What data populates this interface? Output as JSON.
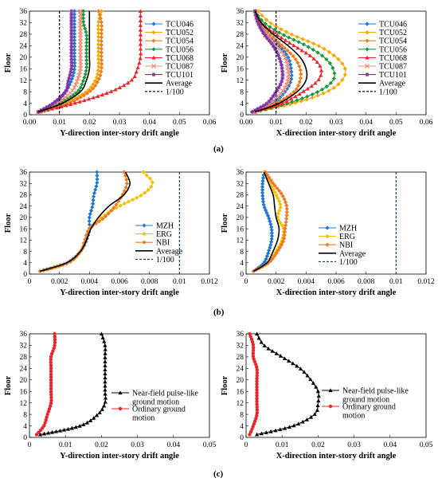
{
  "figure": {
    "panel_labels": [
      "(a)",
      "(b)",
      "(c)"
    ]
  },
  "chart_data": [
    {
      "id": "a-left",
      "type": "line",
      "panel": "(a)",
      "xlabel": "Y-direction inter-story drift angle",
      "ylabel": "Floor",
      "xlim": [
        0,
        0.06
      ],
      "ylim": [
        0,
        36
      ],
      "xticks": [
        "0.00",
        "0.01",
        "0.02",
        "0.03",
        "0.04",
        "0.05",
        "0.06"
      ],
      "yticks": [
        "0",
        "4",
        "8",
        "12",
        "16",
        "20",
        "24",
        "28",
        "32",
        "36"
      ],
      "legend_position": "right",
      "floors": [
        1,
        4,
        8,
        12,
        16,
        20,
        24,
        28,
        32,
        36
      ],
      "series": [
        {
          "name": "TCU046",
          "color": "#1f77d0",
          "marker": "diamond",
          "values": [
            0.003,
            0.008,
            0.012,
            0.014,
            0.015,
            0.015,
            0.015,
            0.015,
            0.015,
            0.015
          ]
        },
        {
          "name": "TCU052",
          "color": "#f5a800",
          "marker": "diamond",
          "values": [
            0.004,
            0.012,
            0.019,
            0.022,
            0.023,
            0.023,
            0.023,
            0.023,
            0.023,
            0.024
          ]
        },
        {
          "name": "TCU054",
          "color": "#ef7b20",
          "marker": "diamond",
          "values": [
            0.004,
            0.013,
            0.02,
            0.023,
            0.024,
            0.024,
            0.024,
            0.024,
            0.024,
            0.023
          ]
        },
        {
          "name": "TCU056",
          "color": "#1a9a3c",
          "marker": "diamond",
          "values": [
            0.003,
            0.01,
            0.016,
            0.018,
            0.019,
            0.019,
            0.019,
            0.019,
            0.018,
            0.018
          ]
        },
        {
          "name": "TCU068",
          "color": "#e8262c",
          "marker": "triangle",
          "values": [
            0.003,
            0.015,
            0.027,
            0.034,
            0.036,
            0.037,
            0.037,
            0.037,
            0.037,
            0.037
          ]
        },
        {
          "name": "TCU087",
          "color": "#f08c74",
          "marker": "x",
          "values": [
            0.003,
            0.009,
            0.014,
            0.016,
            0.017,
            0.017,
            0.017,
            0.017,
            0.017,
            0.017
          ]
        },
        {
          "name": "TCU101",
          "color": "#7e2fa5",
          "marker": "star",
          "values": [
            0.003,
            0.008,
            0.012,
            0.013,
            0.014,
            0.014,
            0.014,
            0.014,
            0.014,
            0.014
          ]
        },
        {
          "name": "Average",
          "color": "#000000",
          "marker": "none",
          "values": [
            0.003,
            0.011,
            0.017,
            0.019,
            0.02,
            0.02,
            0.02,
            0.02,
            0.02,
            0.02
          ]
        },
        {
          "name": "1/100",
          "color": "#000000",
          "marker": "none",
          "dashed": true,
          "values": [
            0.01,
            0.01,
            0.01,
            0.01,
            0.01,
            0.01,
            0.01,
            0.01,
            0.01,
            0.01
          ]
        }
      ]
    },
    {
      "id": "a-right",
      "type": "line",
      "panel": "(a)",
      "xlabel": "X-direction inter-story drift angle",
      "ylabel": "Floor",
      "xlim": [
        0,
        0.06
      ],
      "ylim": [
        0,
        36
      ],
      "xticks": [
        "0.00",
        "0.01",
        "0.02",
        "0.03",
        "0.04",
        "0.05",
        "0.06"
      ],
      "yticks": [
        "0",
        "4",
        "8",
        "12",
        "16",
        "20",
        "24",
        "28",
        "32",
        "36"
      ],
      "legend_position": "right",
      "floors": [
        1,
        4,
        8,
        12,
        16,
        20,
        24,
        28,
        32,
        36
      ],
      "series": [
        {
          "name": "TCU046",
          "color": "#1f77d0",
          "marker": "diamond",
          "values": [
            0.003,
            0.009,
            0.013,
            0.015,
            0.015,
            0.014,
            0.011,
            0.007,
            0.004,
            0.003
          ]
        },
        {
          "name": "TCU052",
          "color": "#f5a800",
          "marker": "diamond",
          "values": [
            0.003,
            0.016,
            0.027,
            0.032,
            0.033,
            0.03,
            0.024,
            0.015,
            0.008,
            0.004
          ]
        },
        {
          "name": "TCU054",
          "color": "#ef7b20",
          "marker": "diamond",
          "values": [
            0.003,
            0.01,
            0.016,
            0.018,
            0.018,
            0.016,
            0.012,
            0.008,
            0.005,
            0.003
          ]
        },
        {
          "name": "TCU056",
          "color": "#1a9a3c",
          "marker": "diamond",
          "values": [
            0.003,
            0.014,
            0.024,
            0.029,
            0.029,
            0.026,
            0.02,
            0.012,
            0.006,
            0.003
          ]
        },
        {
          "name": "TCU068",
          "color": "#e8262c",
          "marker": "triangle",
          "values": [
            0.003,
            0.012,
            0.019,
            0.024,
            0.025,
            0.022,
            0.016,
            0.01,
            0.005,
            0.003
          ]
        },
        {
          "name": "TCU087",
          "color": "#f08c74",
          "marker": "x",
          "values": [
            0.003,
            0.008,
            0.012,
            0.014,
            0.014,
            0.013,
            0.01,
            0.007,
            0.004,
            0.003
          ]
        },
        {
          "name": "TCU101",
          "color": "#7e2fa5",
          "marker": "star",
          "values": [
            0.002,
            0.007,
            0.01,
            0.012,
            0.012,
            0.011,
            0.009,
            0.006,
            0.004,
            0.003
          ]
        },
        {
          "name": "Average",
          "color": "#000000",
          "marker": "none",
          "values": [
            0.003,
            0.011,
            0.017,
            0.02,
            0.02,
            0.018,
            0.014,
            0.009,
            0.005,
            0.003
          ]
        },
        {
          "name": "1/100",
          "color": "#000000",
          "marker": "none",
          "dashed": true,
          "values": [
            0.01,
            0.01,
            0.01,
            0.01,
            0.01,
            0.01,
            0.01,
            0.01,
            0.01,
            0.01
          ]
        }
      ]
    },
    {
      "id": "b-left",
      "type": "line",
      "panel": "(b)",
      "xlabel": "Y-direction inter-story drift angle",
      "ylabel": "Floor",
      "xlim": [
        0,
        0.012
      ],
      "ylim": [
        0,
        36
      ],
      "xticks": [
        "0",
        "0.002",
        "0.004",
        "0.006",
        "0.008",
        "0.01",
        "0.012"
      ],
      "yticks": [
        "0",
        "4",
        "8",
        "12",
        "16",
        "20",
        "24",
        "28",
        "32",
        "36"
      ],
      "legend_position": "right",
      "floors": [
        1,
        4,
        8,
        12,
        16,
        20,
        24,
        28,
        32,
        36
      ],
      "series": [
        {
          "name": "MZH",
          "color": "#1f77d0",
          "marker": "diamond",
          "values": [
            0.0007,
            0.0025,
            0.0034,
            0.0038,
            0.004,
            0.004,
            0.0042,
            0.0043,
            0.0045,
            0.0045
          ]
        },
        {
          "name": "ERG",
          "color": "#f5c000",
          "marker": "diamond",
          "values": [
            0.0007,
            0.0026,
            0.0034,
            0.0037,
            0.004,
            0.0048,
            0.006,
            0.0075,
            0.0082,
            0.0076
          ]
        },
        {
          "name": "NBI",
          "color": "#ef7b20",
          "marker": "diamond",
          "values": [
            0.0007,
            0.0026,
            0.0034,
            0.0037,
            0.004,
            0.005,
            0.0057,
            0.0062,
            0.0065,
            0.0063
          ]
        },
        {
          "name": "Average",
          "color": "#000000",
          "marker": "none",
          "values": [
            0.0007,
            0.0025,
            0.0034,
            0.0038,
            0.0041,
            0.0046,
            0.0053,
            0.0063,
            0.0067,
            0.0064
          ]
        },
        {
          "name": "1/100",
          "color": "#1f3a6e",
          "marker": "none",
          "dashed": true,
          "values": [
            0.01,
            0.01,
            0.01,
            0.01,
            0.01,
            0.01,
            0.01,
            0.01,
            0.01,
            0.01
          ]
        }
      ]
    },
    {
      "id": "b-right",
      "type": "line",
      "panel": "(b)",
      "xlabel": "X-direction inter-story drift angle",
      "ylabel": "Floor",
      "xlim": [
        0,
        0.012
      ],
      "ylim": [
        0,
        36
      ],
      "xticks": [
        "0",
        "0.002",
        "0.004",
        "0.006",
        "0.008",
        "0.01",
        "0.012"
      ],
      "yticks": [
        "0",
        "4",
        "8",
        "12",
        "16",
        "20",
        "24",
        "28",
        "32",
        "36"
      ],
      "legend_position": "center",
      "floors": [
        1,
        4,
        8,
        12,
        16,
        20,
        24,
        28,
        32,
        36
      ],
      "series": [
        {
          "name": "MZH",
          "color": "#1f77d0",
          "marker": "diamond",
          "values": [
            0.0005,
            0.0012,
            0.0015,
            0.0017,
            0.0017,
            0.0015,
            0.0012,
            0.0011,
            0.0011,
            0.0012
          ]
        },
        {
          "name": "ERG",
          "color": "#f5c000",
          "marker": "diamond",
          "values": [
            0.0005,
            0.0015,
            0.002,
            0.0024,
            0.0025,
            0.0021,
            0.0023,
            0.002,
            0.0016,
            0.0012
          ]
        },
        {
          "name": "NBI",
          "color": "#ef7b20",
          "marker": "diamond",
          "values": [
            0.0005,
            0.0015,
            0.0021,
            0.0025,
            0.0026,
            0.0027,
            0.0027,
            0.0024,
            0.0018,
            0.0013
          ]
        },
        {
          "name": "Average",
          "color": "#000000",
          "marker": "none",
          "values": [
            0.0005,
            0.0014,
            0.0018,
            0.0021,
            0.0022,
            0.002,
            0.0019,
            0.0018,
            0.0015,
            0.0012
          ]
        },
        {
          "name": "1/100",
          "color": "#1f3a6e",
          "marker": "none",
          "dashed": true,
          "values": [
            0.01,
            0.01,
            0.01,
            0.01,
            0.01,
            0.01,
            0.01,
            0.01,
            0.01,
            0.01
          ]
        }
      ]
    },
    {
      "id": "c-left",
      "type": "line",
      "panel": "(c)",
      "xlabel": "Y-direction inter-story drift angle",
      "ylabel": "Floor",
      "xlim": [
        0,
        0.05
      ],
      "ylim": [
        0,
        36
      ],
      "xticks": [
        "0",
        "0.01",
        "0.02",
        "0.03",
        "0.04",
        "0.05"
      ],
      "yticks": [
        "0",
        "4",
        "8",
        "12",
        "16",
        "20",
        "24",
        "28",
        "32",
        "36"
      ],
      "legend_position": "right",
      "floors": [
        1,
        4,
        8,
        12,
        16,
        20,
        24,
        28,
        32,
        36
      ],
      "series": [
        {
          "name": "Near-field pulse-like ground motion",
          "color": "#000000",
          "marker": "triangle",
          "values": [
            0.003,
            0.014,
            0.019,
            0.021,
            0.021,
            0.021,
            0.021,
            0.021,
            0.021,
            0.02
          ]
        },
        {
          "name": "Ordinary ground motion",
          "color": "#e8262c",
          "marker": "circle",
          "values": [
            0.002,
            0.004,
            0.005,
            0.006,
            0.006,
            0.006,
            0.006,
            0.006,
            0.007,
            0.007
          ]
        }
      ]
    },
    {
      "id": "c-right",
      "type": "line",
      "panel": "(c)",
      "xlabel": "X-direction inter-story drift angle",
      "ylabel": "Floor",
      "xlim": [
        0,
        0.05
      ],
      "ylim": [
        0,
        36
      ],
      "xticks": [
        "0",
        "0.01",
        "0.02",
        "0.03",
        "0.04",
        "0.05"
      ],
      "yticks": [
        "0",
        "4",
        "8",
        "12",
        "16",
        "20",
        "24",
        "28",
        "32",
        "36"
      ],
      "legend_position": "right",
      "floors": [
        1,
        4,
        8,
        12,
        16,
        20,
        24,
        28,
        32,
        36
      ],
      "series": [
        {
          "name": "Near-field pulse-like ground motion",
          "color": "#000000",
          "marker": "triangle",
          "values": [
            0.003,
            0.013,
            0.019,
            0.02,
            0.02,
            0.018,
            0.015,
            0.01,
            0.005,
            0.003
          ]
        },
        {
          "name": "Ordinary ground motion",
          "color": "#e8262c",
          "marker": "circle",
          "values": [
            0.001,
            0.002,
            0.003,
            0.003,
            0.003,
            0.003,
            0.003,
            0.002,
            0.002,
            0.001
          ]
        }
      ]
    }
  ]
}
